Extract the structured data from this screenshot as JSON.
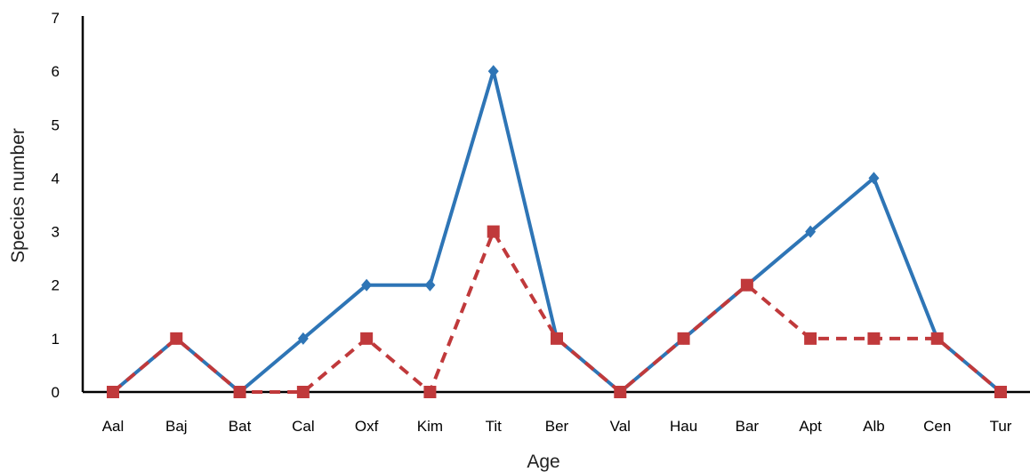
{
  "chart_data": {
    "type": "line",
    "title": "",
    "xlabel": "Age",
    "ylabel": "Species number",
    "categories": [
      "Aal",
      "Baj",
      "Bat",
      "Cal",
      "Oxf",
      "Kim",
      "Tit",
      "Ber",
      "Val",
      "Hau",
      "Bar",
      "Apt",
      "Alb",
      "Cen",
      "Tur"
    ],
    "ylim": [
      0,
      7
    ],
    "yticks": [
      "0",
      "1",
      "2",
      "3",
      "4",
      "5",
      "6",
      "7"
    ],
    "grid": false,
    "legend": "none",
    "series": [
      {
        "values": [
          0,
          1,
          0,
          1,
          2,
          2,
          6,
          1,
          0,
          1,
          2,
          3,
          4,
          1,
          0
        ],
        "color": "#2e75b6",
        "line_style": "solid",
        "marker": "diamond"
      },
      {
        "values": [
          0,
          1,
          0,
          0,
          1,
          0,
          3,
          1,
          0,
          1,
          2,
          1,
          1,
          1,
          0
        ],
        "color": "#c0393b",
        "line_style": "dashed",
        "marker": "square"
      }
    ]
  }
}
